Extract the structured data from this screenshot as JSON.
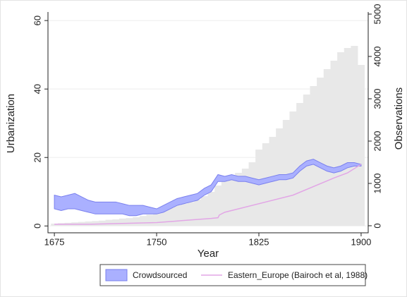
{
  "chart_data": {
    "type": "combo",
    "xlabel": "Year",
    "ylabel": "Urbanization",
    "y2label": "Observations",
    "xlim": [
      1670.3,
      1905.2
    ],
    "xticks": [
      1675,
      1750,
      1825,
      1900
    ],
    "ylim": [
      -2,
      62.5
    ],
    "yticks": [
      0,
      20,
      40,
      60
    ],
    "y2lim": [
      -167,
      5050
    ],
    "y2ticks": [
      0,
      1000,
      2000,
      3000,
      4000,
      5000
    ],
    "grid": true,
    "legend": "bottom",
    "x": [
      1675,
      1680,
      1685,
      1690,
      1695,
      1700,
      1705,
      1710,
      1715,
      1720,
      1725,
      1730,
      1735,
      1740,
      1745,
      1750,
      1755,
      1760,
      1765,
      1770,
      1775,
      1780,
      1785,
      1790,
      1795,
      1800,
      1805,
      1810,
      1815,
      1820,
      1825,
      1830,
      1835,
      1840,
      1845,
      1850,
      1855,
      1860,
      1865,
      1870,
      1875,
      1880,
      1885,
      1890,
      1895,
      1900
    ],
    "series": [
      {
        "name": "Crowdsourced",
        "kind": "band",
        "color": "#aab0ff",
        "lower": [
          5,
          4.5,
          5,
          5,
          4.5,
          4,
          3.5,
          3.5,
          3.5,
          3.5,
          3.5,
          3,
          3,
          3.5,
          3.5,
          3.5,
          4,
          5,
          6,
          6.5,
          7,
          7.5,
          9,
          10,
          13,
          13,
          13.5,
          13,
          13,
          12.5,
          12,
          12.5,
          13,
          13.5,
          13.5,
          14,
          16,
          17.5,
          18,
          17,
          16,
          15.5,
          16,
          17,
          17.5,
          17.5
        ],
        "upper": [
          9,
          8.5,
          9,
          9.5,
          8.5,
          7.5,
          7,
          7,
          7,
          7,
          6.5,
          6,
          6,
          6,
          5.5,
          5,
          6,
          7,
          8,
          8.5,
          9,
          9.5,
          11,
          12,
          15,
          14.5,
          15,
          14.5,
          14.5,
          14,
          13.5,
          14,
          14.5,
          15,
          15,
          15.5,
          17.5,
          19,
          19.5,
          18.5,
          17.5,
          17,
          17.5,
          18.5,
          18.5,
          18
        ]
      },
      {
        "name": "Eastern_Europe (Bairoch et al, 1988)",
        "kind": "line",
        "color": "#e2a6e6",
        "x": [
          1675,
          1700,
          1750,
          1790,
          1795,
          1796,
          1800,
          1850,
          1880,
          1890,
          1900
        ],
        "values": [
          0.5,
          0.5,
          1,
          2.2,
          2.4,
          3.2,
          4,
          9,
          14,
          15.5,
          18
        ]
      },
      {
        "kind": "bar",
        "axis": "y2",
        "color": "#e8e8e8",
        "values": [
          50,
          60,
          70,
          80,
          90,
          100,
          110,
          120,
          140,
          150,
          170,
          180,
          200,
          230,
          260,
          290,
          350,
          420,
          480,
          520,
          560,
          620,
          700,
          800,
          950,
          1050,
          1150,
          1250,
          1350,
          1500,
          1800,
          1950,
          2100,
          2300,
          2500,
          2700,
          2900,
          3100,
          3300,
          3500,
          3700,
          3900,
          4100,
          4200,
          4250,
          3800
        ]
      }
    ]
  }
}
